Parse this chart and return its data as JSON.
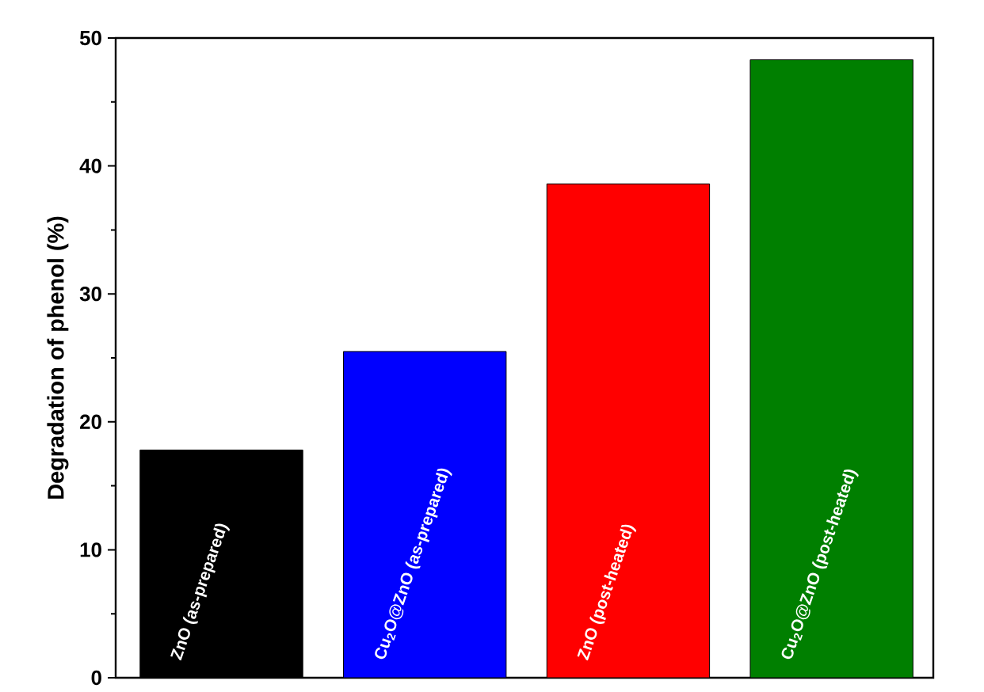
{
  "chart_data": {
    "type": "bar",
    "ylabel": "Degradation of phenol (%)",
    "categories": [
      "ZnO (as-prepared)",
      "Cu$_{2}$O@ZnO (as-prepared)",
      "ZnO (post-heated)",
      "Cu$_{2}$O@ZnO (post-heated)"
    ],
    "values": [
      17.8,
      25.5,
      38.6,
      48.3
    ],
    "colors": [
      "#000000",
      "#0000ff",
      "#ff0000",
      "#007f00"
    ],
    "ylim": [
      0,
      50
    ],
    "yticks": [
      0,
      10,
      20,
      30,
      40,
      50
    ]
  }
}
